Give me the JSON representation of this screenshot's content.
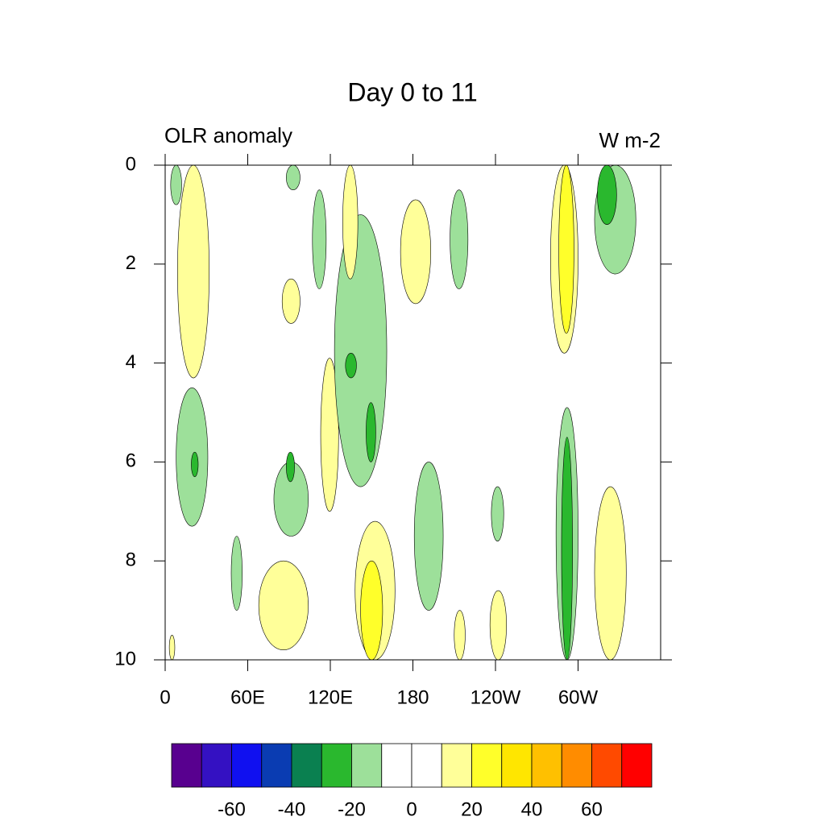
{
  "chart_data": {
    "type": "contour",
    "title": "Day 0 to 11",
    "left_label": "OLR anomaly",
    "right_label": "W m-2",
    "xlim": [
      0,
      360
    ],
    "xticks": [
      0,
      {
        "value": 60,
        "label": "60E"
      },
      {
        "value": 120,
        "label": "120E"
      },
      180,
      {
        "value": 240,
        "label": "120W"
      },
      {
        "value": 300,
        "label": "60W"
      }
    ],
    "ylim": [
      0,
      10
    ],
    "yticks": [
      0,
      2,
      4,
      6,
      8,
      10
    ],
    "levels": [
      -70,
      -60,
      -50,
      -40,
      -30,
      -20,
      -10,
      0,
      10,
      20,
      30,
      40,
      50,
      60,
      70
    ],
    "colors": [
      "#58008f",
      "#3411c2",
      "#1010f0",
      "#0a3cb2",
      "#0a8050",
      "#2ab82e",
      "#9de09a",
      "#ffffff",
      "#ffffff",
      "#ffff99",
      "#ffff2a",
      "#ffe600",
      "#ffc000",
      "#ff8c00",
      "#ff4a00",
      "#ff0000"
    ],
    "colorbar_ticks": [
      -60,
      -40,
      -20,
      0,
      20,
      40,
      60
    ],
    "regions": [
      {
        "x": [
          9,
          32
        ],
        "y": [
          0,
          4.3
        ],
        "value": 15
      },
      {
        "x": [
          4,
          12
        ],
        "y": [
          0,
          0.8
        ],
        "value": -15
      },
      {
        "x": [
          8,
          31
        ],
        "y": [
          4.5,
          7.3
        ],
        "value": -15
      },
      {
        "x": [
          19,
          24
        ],
        "y": [
          5.8,
          6.3
        ],
        "value": -25
      },
      {
        "x": [
          48,
          56
        ],
        "y": [
          7.5,
          9
        ],
        "value": -15
      },
      {
        "x": [
          68,
          104
        ],
        "y": [
          8,
          9.8
        ],
        "value": 15
      },
      {
        "x": [
          79,
          104
        ],
        "y": [
          6,
          7.5
        ],
        "value": -15
      },
      {
        "x": [
          88,
          94
        ],
        "y": [
          5.8,
          6.4
        ],
        "value": -25
      },
      {
        "x": [
          85,
          98
        ],
        "y": [
          2.3,
          3.2
        ],
        "value": 15
      },
      {
        "x": [
          88,
          98
        ],
        "y": [
          0,
          0.5
        ],
        "value": -15
      },
      {
        "x": [
          107,
          117
        ],
        "y": [
          0.5,
          2.5
        ],
        "value": -15
      },
      {
        "x": [
          113,
          126
        ],
        "y": [
          3.9,
          7
        ],
        "value": 15
      },
      {
        "x": [
          123,
          161
        ],
        "y": [
          1,
          6.5
        ],
        "value": -15
      },
      {
        "x": [
          146,
          153
        ],
        "y": [
          4.8,
          6
        ],
        "value": -25
      },
      {
        "x": [
          131,
          139
        ],
        "y": [
          3.8,
          4.3
        ],
        "value": -25
      },
      {
        "x": [
          129,
          140
        ],
        "y": [
          0,
          2.3
        ],
        "value": 15
      },
      {
        "x": [
          138,
          167
        ],
        "y": [
          7.2,
          10
        ],
        "value": 15
      },
      {
        "x": [
          142,
          158
        ],
        "y": [
          8,
          10
        ],
        "value": 25
      },
      {
        "x": [
          181,
          202
        ],
        "y": [
          6,
          9
        ],
        "value": -15
      },
      {
        "x": [
          171,
          193
        ],
        "y": [
          0.7,
          2.8
        ],
        "value": 15
      },
      {
        "x": [
          207,
          220
        ],
        "y": [
          0.5,
          2.5
        ],
        "value": -15
      },
      {
        "x": [
          237,
          246
        ],
        "y": [
          6.5,
          7.6
        ],
        "value": -15
      },
      {
        "x": [
          210,
          218
        ],
        "y": [
          9,
          10
        ],
        "value": 15
      },
      {
        "x": [
          236,
          248
        ],
        "y": [
          8.6,
          10
        ],
        "value": 15
      },
      {
        "x": [
          280,
          300
        ],
        "y": [
          0,
          3.8
        ],
        "value": 15
      },
      {
        "x": [
          286,
          297
        ],
        "y": [
          0,
          3.4
        ],
        "value": 25
      },
      {
        "x": [
          284,
          300
        ],
        "y": [
          4.9,
          10
        ],
        "value": -15
      },
      {
        "x": [
          288,
          296
        ],
        "y": [
          5.5,
          10
        ],
        "value": -25
      },
      {
        "x": [
          312,
          342
        ],
        "y": [
          0,
          2.2
        ],
        "value": -15
      },
      {
        "x": [
          314,
          328
        ],
        "y": [
          0,
          1.2
        ],
        "value": -25
      },
      {
        "x": [
          312,
          335
        ],
        "y": [
          6.5,
          10
        ],
        "value": 15
      },
      {
        "x": [
          3,
          7
        ],
        "y": [
          9.5,
          10
        ],
        "value": 15
      }
    ]
  }
}
